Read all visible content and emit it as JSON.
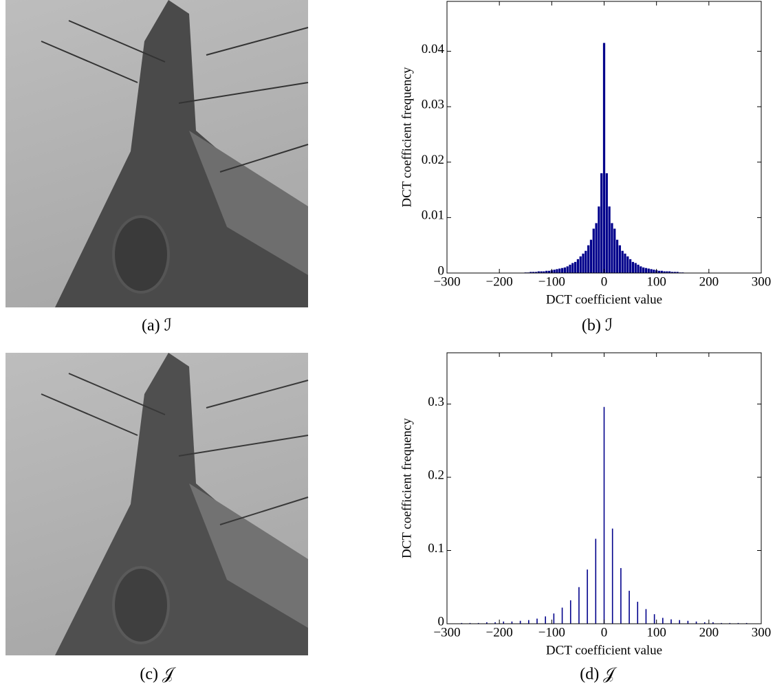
{
  "images": [
    {
      "caption": "(a) ℐ"
    },
    {
      "caption": "(c) 𝒥"
    }
  ],
  "chart_data": [
    {
      "type": "bar",
      "caption": "(b) ℐ",
      "xlabel": "DCT coefficient value",
      "ylabel": "DCT coefficient frequency",
      "color": "#00008b",
      "x": [
        -150,
        -145,
        -140,
        -135,
        -130,
        -125,
        -120,
        -115,
        -110,
        -105,
        -100,
        -95,
        -90,
        -85,
        -80,
        -75,
        -70,
        -65,
        -60,
        -55,
        -50,
        -45,
        -40,
        -35,
        -30,
        -25,
        -20,
        -15,
        -10,
        -5,
        0,
        5,
        10,
        15,
        20,
        25,
        30,
        35,
        40,
        45,
        50,
        55,
        60,
        65,
        70,
        75,
        80,
        85,
        90,
        95,
        100,
        105,
        110,
        115,
        120,
        125,
        130,
        135,
        140,
        145,
        150
      ],
      "values": [
        0.0001,
        0.0001,
        0.0002,
        0.0002,
        0.0002,
        0.0003,
        0.0003,
        0.0003,
        0.0004,
        0.0004,
        0.0005,
        0.0006,
        0.0007,
        0.0008,
        0.0009,
        0.001,
        0.0012,
        0.0015,
        0.0018,
        0.002,
        0.0025,
        0.003,
        0.0035,
        0.004,
        0.005,
        0.006,
        0.008,
        0.009,
        0.012,
        0.018,
        0.0415,
        0.018,
        0.012,
        0.009,
        0.008,
        0.006,
        0.005,
        0.004,
        0.0035,
        0.003,
        0.0025,
        0.002,
        0.0018,
        0.0015,
        0.0012,
        0.001,
        0.0009,
        0.0008,
        0.0007,
        0.0006,
        0.0005,
        0.0004,
        0.0004,
        0.0003,
        0.0003,
        0.0003,
        0.0002,
        0.0002,
        0.0002,
        0.0001,
        0.0001
      ],
      "xlim": [
        -300,
        300
      ],
      "ylim": [
        0,
        0.049
      ],
      "xticks": [
        {
          "value": -300,
          "label": "−300"
        },
        {
          "value": -200,
          "label": "−200"
        },
        {
          "value": -100,
          "label": "−100"
        },
        0,
        100,
        200,
        300
      ],
      "yticks": [
        0,
        0.01,
        0.02,
        0.03,
        0.04
      ]
    },
    {
      "type": "stem",
      "caption": "(d) 𝒥",
      "xlabel": "DCT coefficient value",
      "ylabel": "DCT coefficient frequency",
      "color": "#00008b",
      "x": [
        -272,
        -256,
        -240,
        -224,
        -208,
        -192,
        -176,
        -160,
        -144,
        -128,
        -112,
        -96,
        -80,
        -64,
        -48,
        -32,
        -16,
        0,
        16,
        32,
        48,
        64,
        80,
        96,
        112,
        128,
        144,
        160,
        176,
        192,
        208,
        224,
        240,
        256,
        272
      ],
      "values": [
        0.001,
        0.001,
        0.001,
        0.002,
        0.002,
        0.003,
        0.003,
        0.004,
        0.005,
        0.007,
        0.01,
        0.014,
        0.022,
        0.032,
        0.05,
        0.074,
        0.116,
        0.296,
        0.13,
        0.076,
        0.045,
        0.03,
        0.02,
        0.013,
        0.008,
        0.006,
        0.005,
        0.004,
        0.003,
        0.002,
        0.002,
        0.001,
        0.001,
        0.001,
        0.001
      ],
      "xlim": [
        -300,
        300
      ],
      "ylim": [
        0,
        0.37
      ],
      "xticks": [
        {
          "value": -300,
          "label": "−300"
        },
        {
          "value": -200,
          "label": "−200"
        },
        {
          "value": -100,
          "label": "−100"
        },
        0,
        100,
        200,
        300
      ],
      "yticks": [
        0,
        0.1,
        0.2,
        0.3
      ]
    }
  ]
}
